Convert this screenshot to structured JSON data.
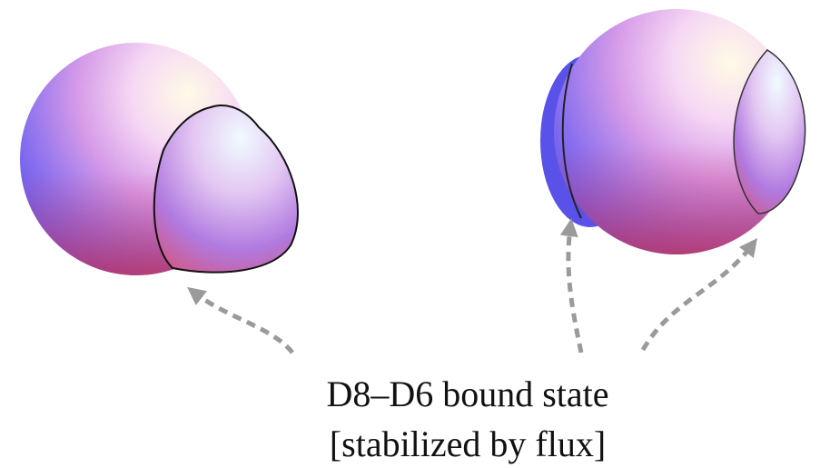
{
  "caption": {
    "line1": "D8–D6 bound state",
    "line2": "[stabilized by flux]"
  }
}
